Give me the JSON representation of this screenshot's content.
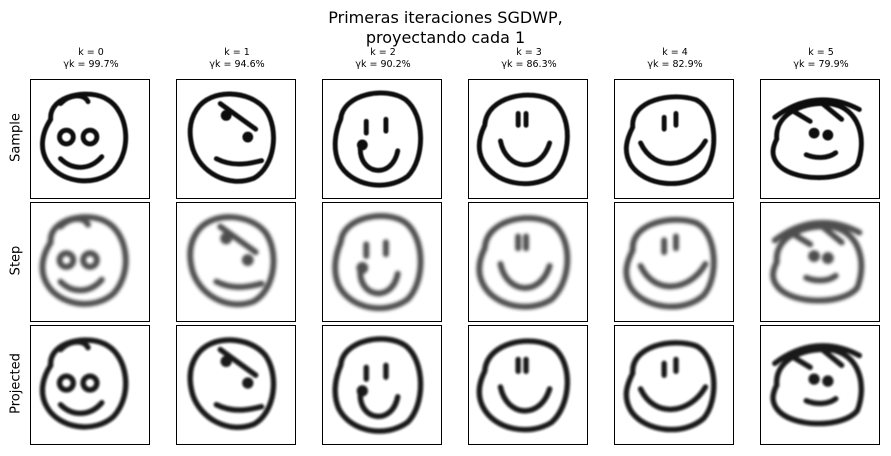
{
  "figure": {
    "title_line1": "Primeras iteraciones SGDWP,",
    "title_line2": "proyectando cada 1",
    "row_labels": [
      "Sample",
      "Step",
      "Projected"
    ],
    "columns": [
      {
        "k": "k = 0",
        "gamma": "γk = 99.7%"
      },
      {
        "k": "k = 1",
        "gamma": "γk = 94.6%"
      },
      {
        "k": "k = 2",
        "gamma": "γk = 90.2%"
      },
      {
        "k": "k = 3",
        "gamma": "γk = 86.3%"
      },
      {
        "k": "k = 4",
        "gamma": "γk = 82.9%"
      },
      {
        "k": "k = 5",
        "gamma": "γk = 79.9%"
      }
    ]
  }
}
